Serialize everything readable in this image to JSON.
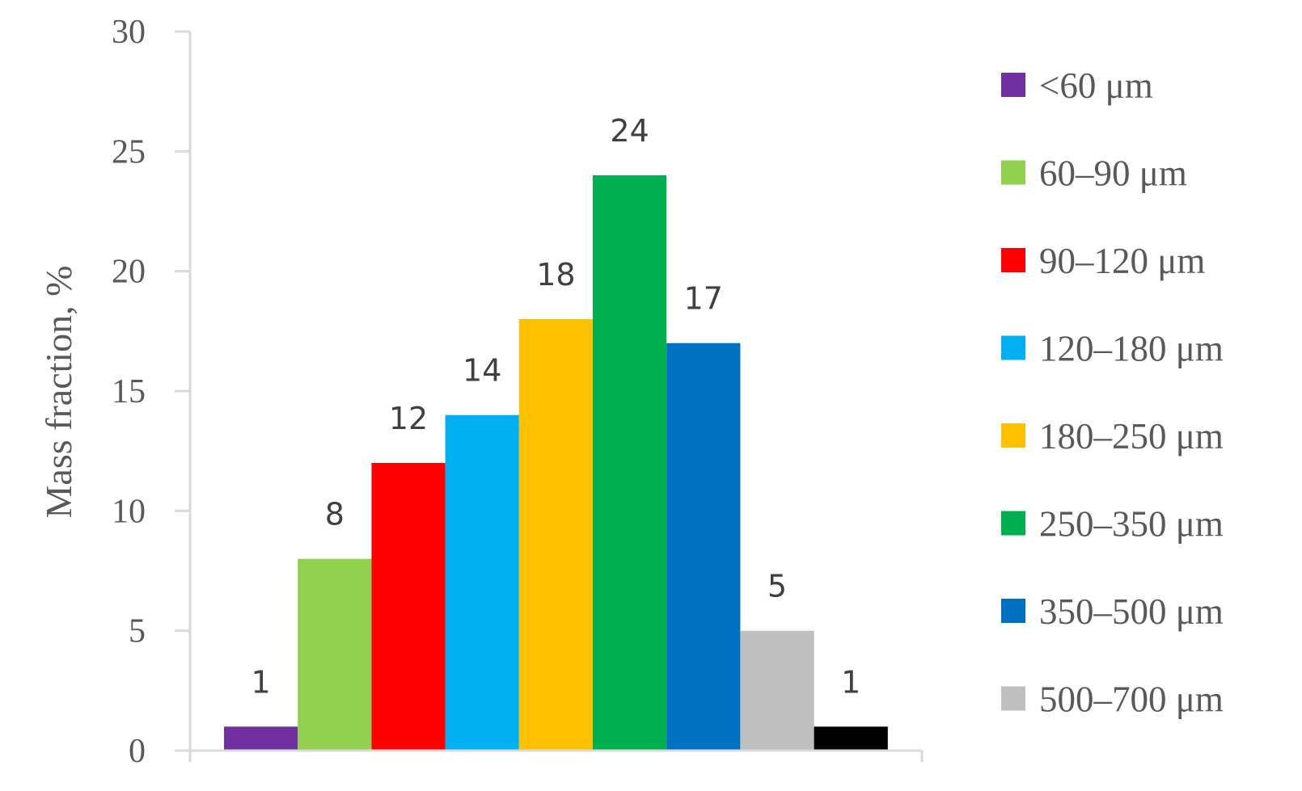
{
  "chart_data": {
    "type": "bar",
    "title": "",
    "xlabel": "",
    "ylabel": "Mass fraction, %",
    "ylim": [
      0,
      30
    ],
    "yticks": [
      0,
      5,
      10,
      15,
      20,
      25,
      30
    ],
    "grid": false,
    "legend_position": "right",
    "series": [
      {
        "name": "<60 μm",
        "value": 1,
        "color": "#7030A0"
      },
      {
        "name": "60–90 μm",
        "value": 8,
        "color": "#92D050"
      },
      {
        "name": "90–120 μm",
        "value": 12,
        "color": "#FF0000"
      },
      {
        "name": "120–180 μm",
        "value": 14,
        "color": "#00B0F0"
      },
      {
        "name": "180–250 μm",
        "value": 18,
        "color": "#FFC000"
      },
      {
        "name": "250–350 μm",
        "value": 24,
        "color": "#00B050"
      },
      {
        "name": "350–500 μm",
        "value": 17,
        "color": "#0070C0"
      },
      {
        "name": "500–700 μm",
        "value": 5,
        "color": "#BFBFBF"
      },
      {
        "name": "",
        "value": 1,
        "color": "#000000"
      }
    ]
  }
}
